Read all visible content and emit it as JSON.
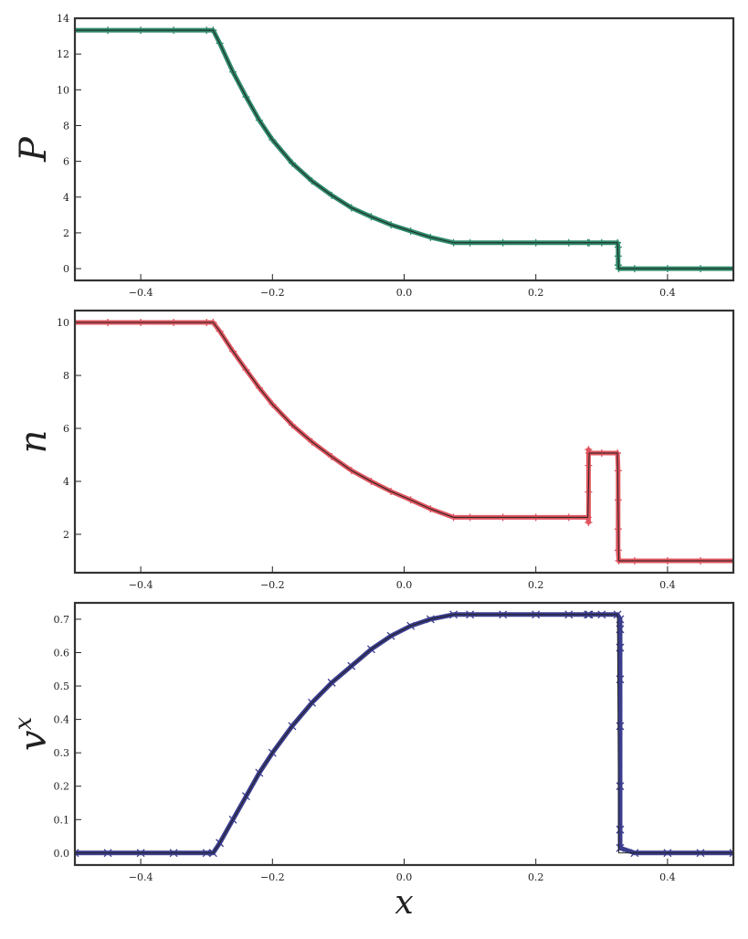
{
  "chart_data": [
    {
      "type": "line",
      "ylabel": "P",
      "x": [
        -0.5,
        -0.45,
        -0.4,
        -0.35,
        -0.3,
        -0.29,
        -0.28,
        -0.26,
        -0.24,
        -0.22,
        -0.2,
        -0.17,
        -0.14,
        -0.11,
        -0.08,
        -0.05,
        -0.02,
        0.01,
        0.04,
        0.075,
        0.1,
        0.15,
        0.2,
        0.25,
        0.279,
        0.281,
        0.3,
        0.324,
        0.326,
        0.35,
        0.4,
        0.45,
        0.5
      ],
      "xlim": [
        -0.5,
        0.5
      ],
      "xticks": [
        {
          "value": -0.4,
          "label": "−0.4"
        },
        {
          "value": -0.2,
          "label": "−0.2"
        },
        {
          "value": 0,
          "label": "0.0"
        },
        0.2,
        0.4
      ],
      "ylim": [
        -0.66,
        14
      ],
      "yticks": [
        0,
        2,
        4,
        6,
        8,
        10,
        12,
        14
      ],
      "series": [
        {
          "color": "#2e8b6a",
          "marker": "+",
          "line_width": 5,
          "x": [
            -0.5,
            -0.45,
            -0.4,
            -0.35,
            -0.3,
            -0.29,
            -0.28,
            -0.26,
            -0.24,
            -0.22,
            -0.2,
            -0.17,
            -0.14,
            -0.11,
            -0.08,
            -0.05,
            -0.02,
            0.01,
            0.04,
            0.075,
            0.1,
            0.15,
            0.2,
            0.25,
            0.279,
            0.281,
            0.3,
            0.324,
            0.325,
            0.325,
            0.325,
            0.326,
            0.35,
            0.4,
            0.45,
            0.5
          ],
          "values": [
            13.33,
            13.33,
            13.33,
            13.33,
            13.33,
            13.33,
            12.6,
            11.0,
            9.6,
            8.3,
            7.2,
            5.9,
            4.9,
            4.1,
            3.4,
            2.9,
            2.45,
            2.1,
            1.75,
            1.45,
            1.45,
            1.45,
            1.45,
            1.45,
            1.45,
            1.45,
            1.45,
            1.45,
            1.2,
            0.7,
            0.2,
            0,
            0,
            0,
            0,
            0
          ]
        },
        {
          "color": "#222222",
          "line_width": 1,
          "values": [
            13.33,
            13.33,
            13.33,
            13.33,
            13.33,
            13.33,
            12.6,
            11.0,
            9.6,
            8.3,
            7.2,
            5.9,
            4.9,
            4.1,
            3.4,
            2.9,
            2.45,
            2.1,
            1.75,
            1.45,
            1.45,
            1.45,
            1.45,
            1.45,
            1.45,
            1.45,
            1.45,
            1.45,
            0,
            0,
            0,
            0,
            0
          ]
        }
      ]
    },
    {
      "type": "line",
      "ylabel": "n",
      "x": [
        -0.5,
        -0.45,
        -0.4,
        -0.35,
        -0.3,
        -0.29,
        -0.28,
        -0.26,
        -0.24,
        -0.22,
        -0.2,
        -0.17,
        -0.14,
        -0.11,
        -0.08,
        -0.05,
        -0.02,
        0.01,
        0.04,
        0.075,
        0.1,
        0.15,
        0.2,
        0.25,
        0.279,
        0.281,
        0.3,
        0.324,
        0.326,
        0.35,
        0.4,
        0.45,
        0.5
      ],
      "xlim": [
        -0.5,
        0.5
      ],
      "xticks": [
        {
          "value": -0.4,
          "label": "−0.4"
        },
        {
          "value": -0.2,
          "label": "−0.2"
        },
        {
          "value": 0,
          "label": "0.0"
        },
        0.2,
        0.4
      ],
      "ylim": [
        0.55,
        10.45
      ],
      "yticks": [
        2,
        4,
        6,
        8,
        10
      ],
      "series": [
        {
          "color": "#e0555f",
          "marker": "+",
          "line_width": 5,
          "x": [
            -0.5,
            -0.45,
            -0.4,
            -0.35,
            -0.3,
            -0.29,
            -0.28,
            -0.26,
            -0.24,
            -0.22,
            -0.2,
            -0.17,
            -0.14,
            -0.11,
            -0.08,
            -0.05,
            -0.02,
            0.01,
            0.04,
            0.075,
            0.1,
            0.15,
            0.2,
            0.25,
            0.279,
            0.28,
            0.28,
            0.28,
            0.28,
            0.281,
            0.3,
            0.324,
            0.325,
            0.325,
            0.325,
            0.325,
            0.326,
            0.35,
            0.4,
            0.45,
            0.5
          ],
          "values": [
            10,
            10,
            10,
            10,
            10,
            10,
            9.67,
            8.91,
            8.21,
            7.53,
            6.91,
            6.13,
            5.49,
            4.93,
            4.41,
            4.0,
            3.62,
            3.3,
            2.96,
            2.64,
            2.64,
            2.64,
            2.64,
            2.64,
            2.64,
            2.45,
            3.6,
            4.6,
            5.2,
            5.07,
            5.07,
            5.07,
            4.4,
            3.3,
            2.2,
            1.4,
            1,
            1,
            1,
            1,
            1
          ]
        },
        {
          "color": "#222222",
          "line_width": 1,
          "values": [
            10,
            10,
            10,
            10,
            10,
            10,
            9.67,
            8.91,
            8.21,
            7.53,
            6.91,
            6.13,
            5.49,
            4.93,
            4.41,
            4.0,
            3.62,
            3.3,
            2.96,
            2.64,
            2.64,
            2.64,
            2.64,
            2.64,
            2.64,
            5.07,
            5.07,
            5.07,
            1,
            1,
            1,
            1,
            1
          ]
        }
      ]
    },
    {
      "type": "line",
      "ylabel": "v",
      "ylabel_superscript": "x",
      "xlabel": "x",
      "x": [
        -0.5,
        -0.45,
        -0.4,
        -0.35,
        -0.3,
        -0.29,
        -0.28,
        -0.26,
        -0.24,
        -0.22,
        -0.2,
        -0.17,
        -0.14,
        -0.11,
        -0.08,
        -0.05,
        -0.02,
        0.01,
        0.04,
        0.075,
        0.1,
        0.15,
        0.2,
        0.25,
        0.279,
        0.281,
        0.3,
        0.324,
        0.326,
        0.35,
        0.4,
        0.45,
        0.5
      ],
      "xlim": [
        -0.5,
        0.5
      ],
      "xticks": [
        {
          "value": -0.4,
          "label": "−0.4"
        },
        {
          "value": -0.2,
          "label": "−0.2"
        },
        {
          "value": 0,
          "label": "0.0"
        },
        0.2,
        0.4
      ],
      "ylim": [
        -0.036,
        0.749
      ],
      "yticks": [
        {
          "value": 0,
          "label": "0.0"
        },
        0.1,
        0.2,
        0.3,
        0.4,
        0.5,
        0.6,
        0.7
      ],
      "series": [
        {
          "color": "#3a3c8c",
          "marker": "x",
          "line_width": 5,
          "x": [
            -0.5,
            -0.45,
            -0.4,
            -0.35,
            -0.3,
            -0.29,
            -0.28,
            -0.26,
            -0.24,
            -0.22,
            -0.2,
            -0.17,
            -0.14,
            -0.11,
            -0.08,
            -0.05,
            -0.02,
            0.01,
            0.04,
            0.075,
            0.1,
            0.15,
            0.2,
            0.25,
            0.279,
            0.281,
            0.3,
            0.324,
            0.328,
            0.328,
            0.328,
            0.328,
            0.328,
            0.328,
            0.328,
            0.328,
            0.35,
            0.4,
            0.45,
            0.5
          ],
          "values": [
            0,
            0,
            0,
            0,
            0,
            0,
            0.03,
            0.1,
            0.17,
            0.24,
            0.3,
            0.38,
            0.45,
            0.51,
            0.56,
            0.61,
            0.65,
            0.68,
            0.7,
            0.714,
            0.714,
            0.714,
            0.714,
            0.714,
            0.714,
            0.714,
            0.714,
            0.714,
            0.7,
            0.67,
            0.615,
            0.52,
            0.38,
            0.2,
            0.07,
            0.015,
            0,
            0,
            0,
            0
          ]
        },
        {
          "color": "#222222",
          "line_width": 1,
          "values": [
            0,
            0,
            0,
            0,
            0,
            0,
            0.03,
            0.1,
            0.17,
            0.24,
            0.3,
            0.38,
            0.45,
            0.51,
            0.56,
            0.61,
            0.65,
            0.68,
            0.7,
            0.714,
            0.714,
            0.714,
            0.714,
            0.714,
            0.714,
            0.714,
            0.714,
            0.714,
            0,
            0,
            0,
            0,
            0
          ]
        }
      ]
    }
  ]
}
